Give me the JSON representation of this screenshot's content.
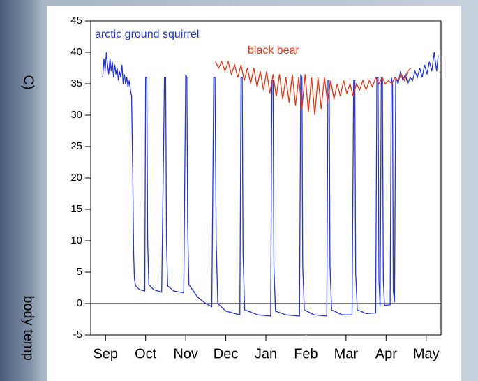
{
  "chart_data": {
    "type": "line",
    "y_label": "body temp",
    "y_label_unit": "C)",
    "xlim": [
      -0.37,
      8.37
    ],
    "ylim": [
      -5,
      45
    ],
    "xticks": [
      {
        "value": 0,
        "label": "Sep"
      },
      {
        "value": 1,
        "label": "Oct"
      },
      {
        "value": 2,
        "label": "Nov"
      },
      {
        "value": 3,
        "label": "Dec"
      },
      {
        "value": 4,
        "label": "Jan"
      },
      {
        "value": 5,
        "label": "Feb"
      },
      {
        "value": 6,
        "label": "Mar"
      },
      {
        "value": 7,
        "label": "Apr"
      },
      {
        "value": 8,
        "label": "May"
      }
    ],
    "yticks": [
      -5,
      0,
      5,
      10,
      15,
      20,
      25,
      30,
      35,
      40,
      45
    ],
    "zero_line": true,
    "series": [
      {
        "name": "arctic ground squirrel",
        "color": "#2233dd",
        "x": [
          -0.07,
          -0.04,
          -0.01,
          0.02,
          0.05,
          0.08,
          0.11,
          0.14,
          0.17,
          0.2,
          0.23,
          0.26,
          0.29,
          0.32,
          0.35,
          0.38,
          0.41,
          0.44,
          0.47,
          0.5,
          0.53,
          0.56,
          0.59,
          0.62,
          0.65,
          0.68,
          0.7,
          0.72,
          0.75,
          0.85,
          0.98,
          1.0,
          1.03,
          1.05,
          1.08,
          1.2,
          1.4,
          1.47,
          1.5,
          1.52,
          1.55,
          1.7,
          1.95,
          2.0,
          2.03,
          2.05,
          2.08,
          2.3,
          2.5,
          2.65,
          2.7,
          2.73,
          2.76,
          2.8,
          3.0,
          3.35,
          3.38,
          3.41,
          3.43,
          3.47,
          3.8,
          4.12,
          4.15,
          4.18,
          4.2,
          4.24,
          4.5,
          4.84,
          4.87,
          4.9,
          4.92,
          4.96,
          5.2,
          5.52,
          5.55,
          5.58,
          5.6,
          5.64,
          5.9,
          6.15,
          6.19,
          6.22,
          6.24,
          6.28,
          6.5,
          6.74,
          6.77,
          6.8,
          6.82,
          6.85,
          6.88,
          6.91,
          6.93,
          6.96,
          7.1,
          7.13,
          7.16,
          7.18,
          7.21,
          7.24,
          7.3,
          7.36,
          7.42,
          7.48,
          7.54,
          7.6,
          7.66,
          7.72,
          7.78,
          7.84,
          7.9,
          7.96,
          8.02,
          8.08,
          8.14,
          8.2,
          8.26,
          8.3
        ],
        "values": [
          36,
          39,
          37,
          40,
          38,
          36.5,
          39,
          37,
          38.5,
          36,
          38,
          36.5,
          37.5,
          35.5,
          37,
          36,
          38,
          35,
          36.5,
          35,
          36,
          34.5,
          35.5,
          34,
          33,
          20,
          8,
          4,
          2.8,
          2.2,
          2.0,
          36,
          36,
          10,
          3,
          2.2,
          1.8,
          36,
          36,
          10,
          2.8,
          2,
          1.7,
          36.5,
          36,
          12,
          3,
          1,
          0,
          -0.5,
          36,
          36,
          10,
          0,
          -1.2,
          -1.8,
          36,
          36,
          8,
          -1,
          -1.8,
          -2,
          35.5,
          35.5,
          6,
          -1.2,
          -1.8,
          -2,
          36.5,
          36,
          6,
          -1,
          -1.8,
          -2,
          35.5,
          35.5,
          6,
          -1,
          -1.8,
          -1.8,
          35.5,
          35.5,
          5,
          -1,
          -1.6,
          -1.5,
          36,
          36,
          4,
          -0.5,
          36,
          36,
          4,
          -0.3,
          -0.2,
          36,
          35,
          2,
          0.2,
          36,
          35,
          37,
          35.5,
          36.5,
          35,
          36,
          35.5,
          37,
          36,
          37.5,
          36,
          38,
          36.5,
          38.5,
          37,
          40,
          37,
          39.5
        ]
      },
      {
        "name": "black bear",
        "color": "#ee3311",
        "x": [
          2.74,
          2.82,
          2.9,
          2.98,
          3.06,
          3.14,
          3.22,
          3.3,
          3.38,
          3.46,
          3.54,
          3.62,
          3.7,
          3.78,
          3.86,
          3.94,
          4.02,
          4.1,
          4.18,
          4.26,
          4.34,
          4.42,
          4.5,
          4.58,
          4.66,
          4.74,
          4.82,
          4.9,
          4.98,
          5.06,
          5.14,
          5.22,
          5.3,
          5.38,
          5.46,
          5.54,
          5.62,
          5.7,
          5.78,
          5.86,
          5.94,
          6.02,
          6.1,
          6.18,
          6.26,
          6.34,
          6.42,
          6.5,
          6.58,
          6.66,
          6.74,
          6.82,
          6.9,
          6.98,
          7.06,
          7.14,
          7.22,
          7.3,
          7.38,
          7.46,
          7.54,
          7.62
        ],
        "values": [
          38.5,
          37.5,
          38.5,
          37,
          38.5,
          36.5,
          38,
          36,
          38,
          35.5,
          37.5,
          35,
          37.5,
          34.5,
          37,
          34,
          37,
          33.5,
          36.5,
          33,
          36.5,
          32.5,
          36,
          32,
          36.5,
          31.5,
          36,
          31,
          36.5,
          30.5,
          36,
          30,
          36,
          31,
          36,
          32,
          35.5,
          32.5,
          35,
          33,
          35.5,
          33.5,
          35,
          33,
          35,
          34,
          35.5,
          34,
          35.5,
          34.5,
          36,
          35,
          36,
          35,
          35.5,
          35,
          36,
          35.5,
          36.5,
          35.5,
          37,
          37.5
        ]
      }
    ]
  }
}
